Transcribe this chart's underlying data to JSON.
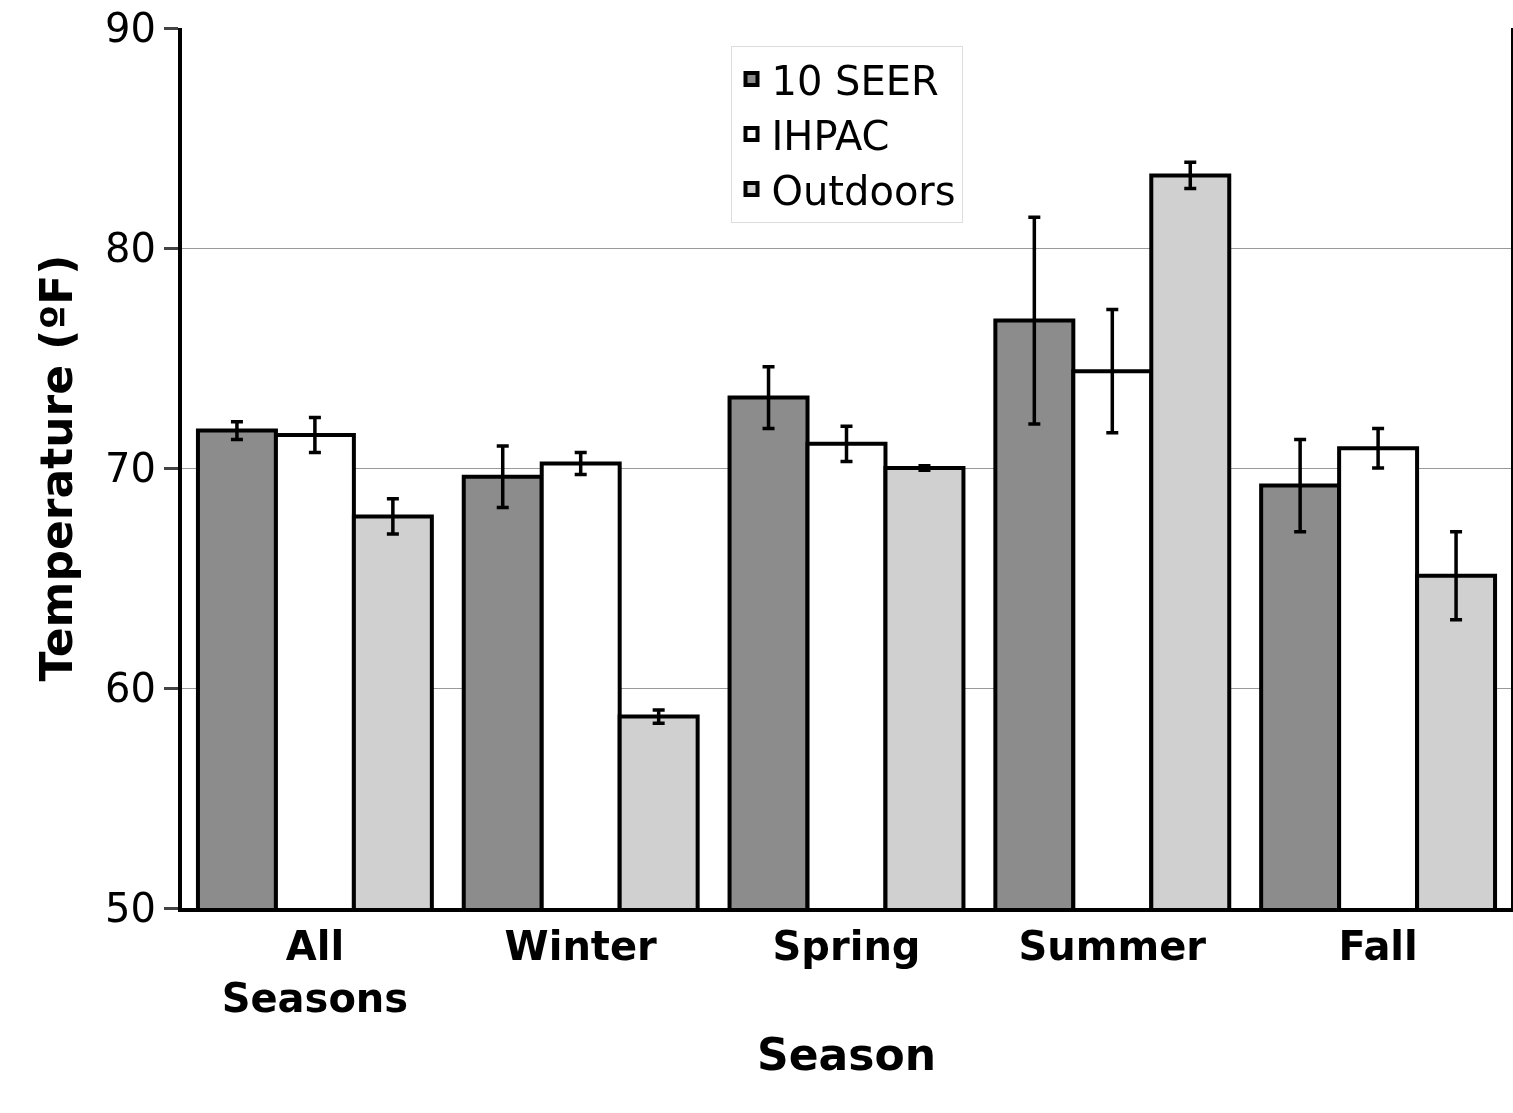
{
  "chart_data": {
    "type": "bar",
    "xlabel": "Season",
    "ylabel": "Temperature (ºF)",
    "categories": [
      "All Seasons",
      "Winter",
      "Spring",
      "Summer",
      "Fall"
    ],
    "series": [
      {
        "name": "10 SEER",
        "color": "#8c8c8c",
        "values": [
          71.7,
          69.6,
          73.2,
          76.7,
          69.2
        ],
        "errors": [
          0.4,
          1.4,
          1.4,
          4.7,
          2.1
        ]
      },
      {
        "name": "IHPAC",
        "color": "#ffffff",
        "values": [
          71.5,
          70.2,
          71.1,
          74.4,
          70.9
        ],
        "errors": [
          0.8,
          0.5,
          0.8,
          2.8,
          0.9
        ]
      },
      {
        "name": "Outdoors",
        "color": "#d0d0d0",
        "values": [
          67.8,
          58.7,
          70.0,
          83.3,
          65.1
        ],
        "errors": [
          0.8,
          0.3,
          0.1,
          0.6,
          2.0
        ]
      }
    ],
    "ylim": [
      50,
      90
    ],
    "yticks": [
      50,
      60,
      70,
      80,
      90
    ],
    "grid": "y",
    "legend": "top"
  }
}
